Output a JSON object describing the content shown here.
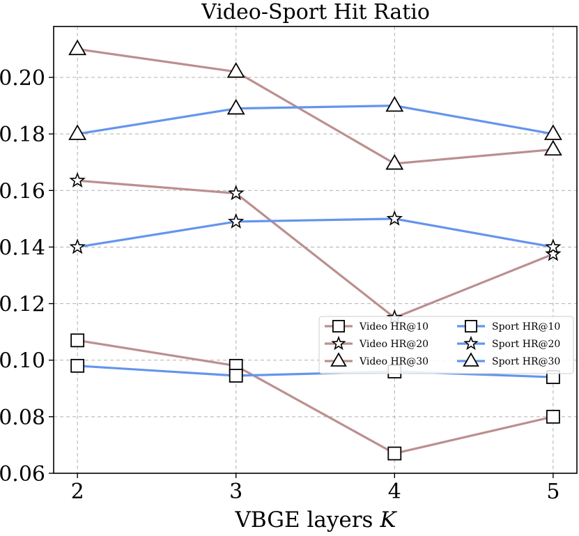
{
  "chart_data": {
    "type": "line",
    "title": "Video-Sport Hit Ratio",
    "xlabel": "VBGE layers",
    "xlabel_var": "K",
    "ylabel": "",
    "x": [
      2,
      3,
      4,
      5
    ],
    "x_tick_labels": [
      "2",
      "3",
      "4",
      "5"
    ],
    "xlim": [
      1.85,
      5.15
    ],
    "ylim": [
      0.06,
      0.218
    ],
    "y_ticks": [
      0.06,
      0.08,
      0.1,
      0.12,
      0.14,
      0.16,
      0.18,
      0.2
    ],
    "y_tick_labels": [
      "0.06",
      "0.08",
      "0.10",
      "0.12",
      "0.14",
      "0.16",
      "0.18",
      "0.20"
    ],
    "grid": true,
    "legend_position": "center-right",
    "series": [
      {
        "name": "Video HR@10",
        "marker": "square",
        "color": "#bc8f8f",
        "values": [
          0.107,
          0.098,
          0.067,
          0.08
        ]
      },
      {
        "name": "Video HR@20",
        "marker": "star",
        "color": "#bc8f8f",
        "values": [
          0.1635,
          0.159,
          0.115,
          0.1375
        ]
      },
      {
        "name": "Video HR@30",
        "marker": "triangle",
        "color": "#bc8f8f",
        "values": [
          0.21,
          0.202,
          0.1695,
          0.1745
        ]
      },
      {
        "name": "Sport HR@10",
        "marker": "square",
        "color": "#6495ed",
        "values": [
          0.098,
          0.0945,
          0.096,
          0.094
        ]
      },
      {
        "name": "Sport HR@20",
        "marker": "star",
        "color": "#6495ed",
        "values": [
          0.14,
          0.149,
          0.15,
          0.14
        ]
      },
      {
        "name": "Sport HR@30",
        "marker": "triangle",
        "color": "#6495ed",
        "values": [
          0.18,
          0.189,
          0.19,
          0.18
        ]
      }
    ]
  }
}
